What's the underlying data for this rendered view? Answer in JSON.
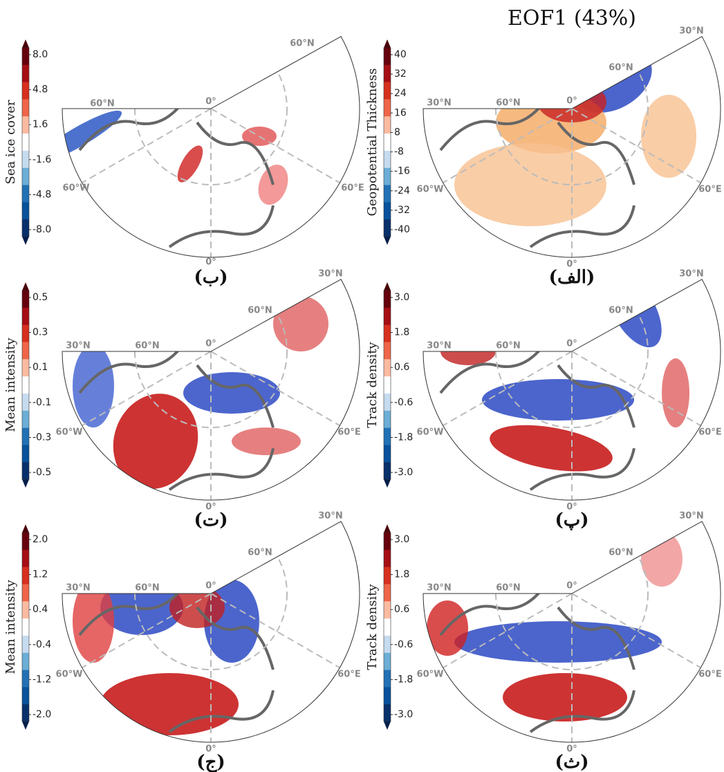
{
  "title": "EOF1 (43%)",
  "panels": [
    {
      "label": "(ب)",
      "colorbar": {
        "title": "Sea ice cover",
        "ticks": [
          "8.0",
          "4.8",
          "1.6",
          "-1.6",
          "-4.8",
          "-8.0"
        ]
      },
      "map_labels": [
        "60°N",
        "60°N",
        "0°",
        "60°W",
        "60°E",
        "0°"
      ]
    },
    {
      "label": "(الف)",
      "colorbar": {
        "title": "Geopotential Thickness",
        "ticks": [
          "40",
          "32",
          "24",
          "16",
          "8",
          "-8",
          "-16",
          "-24",
          "-32",
          "-40"
        ]
      },
      "map_labels": [
        "30°N",
        "60°N",
        "30°N",
        "60°N",
        "0°",
        "60°W",
        "60°E",
        "0°"
      ]
    },
    {
      "label": "(ت)",
      "colorbar": {
        "title": "Mean intensity",
        "ticks": [
          "0.5",
          "0.3",
          "0.1",
          "-0.1",
          "-0.3",
          "-0.5"
        ]
      },
      "map_labels": [
        "30°N",
        "60°N",
        "30°N",
        "60°N",
        "0°",
        "60°W",
        "60°E",
        "0°"
      ]
    },
    {
      "label": "(پ)",
      "colorbar": {
        "title": "Track density",
        "ticks": [
          "3.0",
          "1.8",
          "0.6",
          "-0.6",
          "-1.8",
          "-3.0"
        ]
      },
      "map_labels": [
        "30°N",
        "60°N",
        "30°N",
        "60°N",
        "0°",
        "60°W",
        "60°E",
        "0°"
      ]
    },
    {
      "label": "(ج)",
      "colorbar": {
        "title": "Mean intensity",
        "ticks": [
          "2.0",
          "1.2",
          "0.4",
          "-0.4",
          "-1.2",
          "-2.0"
        ]
      },
      "map_labels": [
        "30°N",
        "60°N",
        "30°N",
        "60°N",
        "0°",
        "60°W",
        "60°E",
        "0°"
      ]
    },
    {
      "label": "(ث)",
      "colorbar": {
        "title": "Track density",
        "ticks": [
          "3.0",
          "1.8",
          "0.6",
          "-0.6",
          "-1.8",
          "-3.0"
        ]
      },
      "map_labels": [
        "30°N",
        "60°N",
        "30°N",
        "60°N",
        "0°",
        "60°W",
        "60°E",
        "0°"
      ]
    }
  ]
}
